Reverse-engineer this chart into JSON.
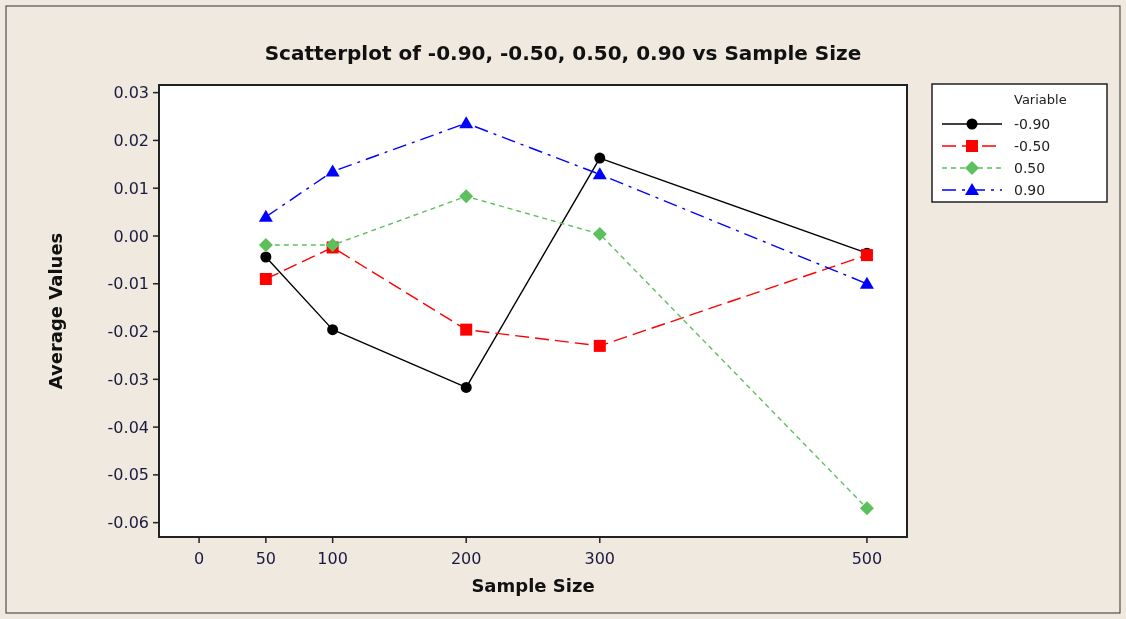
{
  "chart_data": {
    "type": "line",
    "title": "Scatterplot of -0.90, -0.50, 0.50, 0.90 vs Sample Size",
    "xlabel": "Sample Size",
    "ylabel": "Average Values",
    "legend_title": "Variable",
    "legend": "top right",
    "grid": false,
    "x": [
      50,
      100,
      200,
      300,
      500
    ],
    "xlim": [
      -30,
      530
    ],
    "xticks": [
      0,
      50,
      100,
      200,
      300,
      500
    ],
    "ylim": [
      -0.063,
      0.0316
    ],
    "yticks": [
      {
        "value": 0.03,
        "label": "0.03"
      },
      {
        "value": 0.02,
        "label": "0.02"
      },
      {
        "value": 0.01,
        "label": "0.01"
      },
      {
        "value": 0,
        "label": "0.00"
      },
      {
        "value": -0.01,
        "label": "-0.01"
      },
      {
        "value": -0.02,
        "label": "-0.02"
      },
      {
        "value": -0.03,
        "label": "-0.03"
      },
      {
        "value": -0.04,
        "label": "-0.04"
      },
      {
        "value": -0.05,
        "label": "-0.05"
      },
      {
        "value": -0.06,
        "label": "-0.06"
      }
    ],
    "series": [
      {
        "name": "-0.90",
        "color": "#000000",
        "marker": "circle",
        "line_style": "solid",
        "values": [
          -0.0044,
          -0.0196,
          -0.0317,
          0.0163,
          -0.0036
        ]
      },
      {
        "name": "-0.50",
        "color": "#ff0000",
        "marker": "square",
        "line_style": "dashed",
        "values": [
          -0.009,
          -0.0024,
          -0.0196,
          -0.023,
          -0.004
        ]
      },
      {
        "name": "0.50",
        "color": "#5cc05c",
        "marker": "diamond",
        "line_style": "dotted",
        "values": [
          -0.0019,
          -0.0019,
          0.0083,
          0.0004,
          -0.057
        ]
      },
      {
        "name": "0.90",
        "color": "#0000ff",
        "marker": "triangle",
        "line_style": "dashdot",
        "values": [
          0.004,
          0.0135,
          0.0236,
          0.0129,
          -0.01
        ]
      }
    ]
  }
}
